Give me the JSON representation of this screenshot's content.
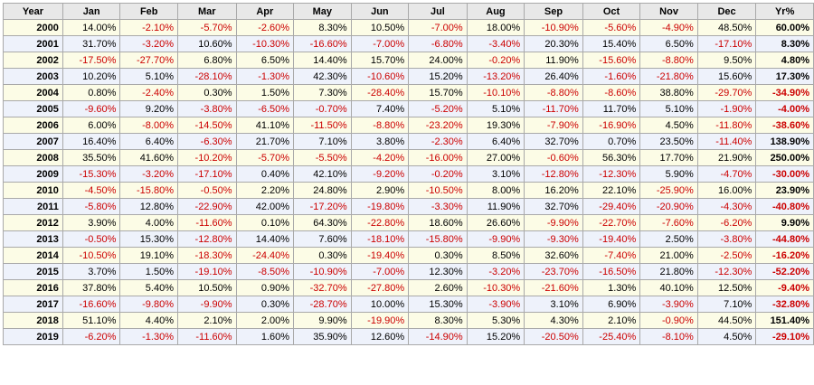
{
  "table": {
    "headers": [
      "Year",
      "Jan",
      "Feb",
      "Mar",
      "Apr",
      "May",
      "Jun",
      "Jul",
      "Aug",
      "Sep",
      "Oct",
      "Nov",
      "Dec",
      "Yr%"
    ],
    "rows": [
      {
        "year": "2000",
        "values": [
          "14.00%",
          "-2.10%",
          "-5.70%",
          "-2.60%",
          "8.30%",
          "10.50%",
          "-7.00%",
          "18.00%",
          "-10.90%",
          "-5.60%",
          "-4.90%",
          "48.50%",
          "60.00%"
        ]
      },
      {
        "year": "2001",
        "values": [
          "31.70%",
          "-3.20%",
          "10.60%",
          "-10.30%",
          "-16.60%",
          "-7.00%",
          "-6.80%",
          "-3.40%",
          "20.30%",
          "15.40%",
          "6.50%",
          "-17.10%",
          "8.30%"
        ]
      },
      {
        "year": "2002",
        "values": [
          "-17.50%",
          "-27.70%",
          "6.80%",
          "6.50%",
          "14.40%",
          "15.70%",
          "24.00%",
          "-0.20%",
          "11.90%",
          "-15.60%",
          "-8.80%",
          "9.50%",
          "4.80%"
        ]
      },
      {
        "year": "2003",
        "values": [
          "10.20%",
          "5.10%",
          "-28.10%",
          "-1.30%",
          "42.30%",
          "-10.60%",
          "15.20%",
          "-13.20%",
          "26.40%",
          "-1.60%",
          "-21.80%",
          "15.60%",
          "17.30%"
        ]
      },
      {
        "year": "2004",
        "values": [
          "0.80%",
          "-2.40%",
          "0.30%",
          "1.50%",
          "7.30%",
          "-28.40%",
          "15.70%",
          "-10.10%",
          "-8.80%",
          "-8.60%",
          "38.80%",
          "-29.70%",
          "-34.90%"
        ]
      },
      {
        "year": "2005",
        "values": [
          "-9.60%",
          "9.20%",
          "-3.80%",
          "-6.50%",
          "-0.70%",
          "7.40%",
          "-5.20%",
          "5.10%",
          "-11.70%",
          "11.70%",
          "5.10%",
          "-1.90%",
          "-4.00%"
        ]
      },
      {
        "year": "2006",
        "values": [
          "6.00%",
          "-8.00%",
          "-14.50%",
          "41.10%",
          "-11.50%",
          "-8.80%",
          "-23.20%",
          "19.30%",
          "-7.90%",
          "-16.90%",
          "4.50%",
          "-11.80%",
          "-38.60%"
        ]
      },
      {
        "year": "2007",
        "values": [
          "16.40%",
          "6.40%",
          "-6.30%",
          "21.70%",
          "7.10%",
          "3.80%",
          "-2.30%",
          "6.40%",
          "32.70%",
          "0.70%",
          "23.50%",
          "-11.40%",
          "138.90%"
        ]
      },
      {
        "year": "2008",
        "values": [
          "35.50%",
          "41.60%",
          "-10.20%",
          "-5.70%",
          "-5.50%",
          "-4.20%",
          "-16.00%",
          "27.00%",
          "-0.60%",
          "56.30%",
          "17.70%",
          "21.90%",
          "250.00%"
        ]
      },
      {
        "year": "2009",
        "values": [
          "-15.30%",
          "-3.20%",
          "-17.10%",
          "0.40%",
          "42.10%",
          "-9.20%",
          "-0.20%",
          "3.10%",
          "-12.80%",
          "-12.30%",
          "5.90%",
          "-4.70%",
          "-30.00%"
        ]
      },
      {
        "year": "2010",
        "values": [
          "-4.50%",
          "-15.80%",
          "-0.50%",
          "2.20%",
          "24.80%",
          "2.90%",
          "-10.50%",
          "8.00%",
          "16.20%",
          "22.10%",
          "-25.90%",
          "16.00%",
          "23.90%"
        ]
      },
      {
        "year": "2011",
        "values": [
          "-5.80%",
          "12.80%",
          "-22.90%",
          "42.00%",
          "-17.20%",
          "-19.80%",
          "-3.30%",
          "11.90%",
          "32.70%",
          "-29.40%",
          "-20.90%",
          "-4.30%",
          "-40.80%"
        ]
      },
      {
        "year": "2012",
        "values": [
          "3.90%",
          "4.00%",
          "-11.60%",
          "0.10%",
          "64.30%",
          "-22.80%",
          "18.60%",
          "26.60%",
          "-9.90%",
          "-22.70%",
          "-7.60%",
          "-6.20%",
          "9.90%"
        ]
      },
      {
        "year": "2013",
        "values": [
          "-0.50%",
          "15.30%",
          "-12.80%",
          "14.40%",
          "7.60%",
          "-18.10%",
          "-15.80%",
          "-9.90%",
          "-9.30%",
          "-19.40%",
          "2.50%",
          "-3.80%",
          "-44.80%"
        ]
      },
      {
        "year": "2014",
        "values": [
          "-10.50%",
          "19.10%",
          "-18.30%",
          "-24.40%",
          "0.30%",
          "-19.40%",
          "0.30%",
          "8.50%",
          "32.60%",
          "-7.40%",
          "21.00%",
          "-2.50%",
          "-16.20%"
        ]
      },
      {
        "year": "2015",
        "values": [
          "3.70%",
          "1.50%",
          "-19.10%",
          "-8.50%",
          "-10.90%",
          "-7.00%",
          "12.30%",
          "-3.20%",
          "-23.70%",
          "-16.50%",
          "21.80%",
          "-12.30%",
          "-52.20%"
        ]
      },
      {
        "year": "2016",
        "values": [
          "37.80%",
          "5.40%",
          "10.50%",
          "0.90%",
          "-32.70%",
          "-27.80%",
          "2.60%",
          "-10.30%",
          "-21.60%",
          "1.30%",
          "40.10%",
          "12.50%",
          "-9.40%"
        ]
      },
      {
        "year": "2017",
        "values": [
          "-16.60%",
          "-9.80%",
          "-9.90%",
          "0.30%",
          "-28.70%",
          "10.00%",
          "15.30%",
          "-3.90%",
          "3.10%",
          "6.90%",
          "-3.90%",
          "7.10%",
          "-32.80%"
        ]
      },
      {
        "year": "2018",
        "values": [
          "51.10%",
          "4.40%",
          "2.10%",
          "2.00%",
          "9.90%",
          "-19.90%",
          "8.30%",
          "5.30%",
          "4.30%",
          "2.10%",
          "-0.90%",
          "44.50%",
          "151.40%"
        ]
      },
      {
        "year": "2019",
        "values": [
          "-6.20%",
          "-1.30%",
          "-11.60%",
          "1.60%",
          "35.90%",
          "12.60%",
          "-14.90%",
          "15.20%",
          "-20.50%",
          "-25.40%",
          "-8.10%",
          "4.50%",
          "-29.10%"
        ]
      }
    ]
  },
  "colors": {
    "positive": "#000000",
    "negative": "#cc0000",
    "header_bg": "#e8e8e8",
    "row_odd_bg": "#fcfce6",
    "row_even_bg": "#eef2fb",
    "border": "#a9a9a9"
  }
}
